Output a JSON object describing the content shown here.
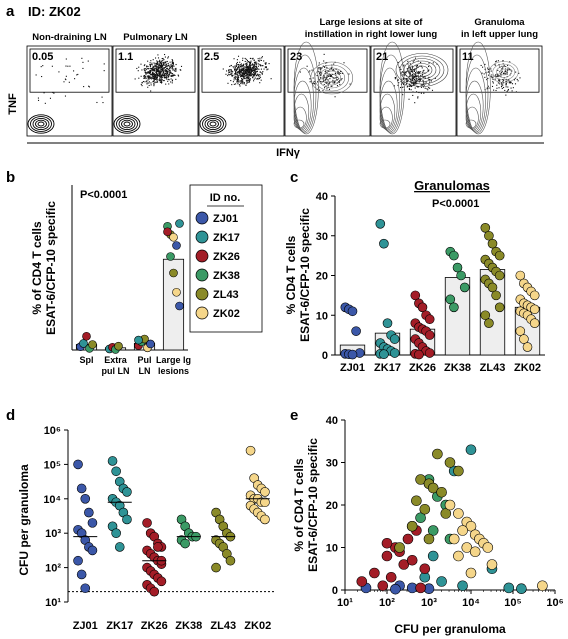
{
  "panel_a": {
    "letter": "a",
    "id_label": "ID: ZK02",
    "y_label": "TNF",
    "x_label": "IFNγ",
    "plots": [
      {
        "title": "Non-draining LN",
        "value": "0.05",
        "kind": "sparse"
      },
      {
        "title": "Pulmonary LN",
        "value": "1.1",
        "kind": "dense"
      },
      {
        "title": "Spleen",
        "value": "2.5",
        "kind": "dense"
      },
      {
        "title": "Large lesions at site of instillation in right lower lung",
        "value": "23",
        "kind": "contour"
      },
      {
        "title": "",
        "value": "21",
        "kind": "contour-dense"
      },
      {
        "title": "Granuloma in left upper lung",
        "value": "11",
        "kind": "contour-light"
      }
    ]
  },
  "legend": {
    "title": "ID no.",
    "items": [
      {
        "id": "ZJ01",
        "color": "#3b57a8"
      },
      {
        "id": "ZK17",
        "color": "#2f9396"
      },
      {
        "id": "ZK26",
        "color": "#a31d27"
      },
      {
        "id": "ZK38",
        "color": "#3b9a65"
      },
      {
        "id": "ZL43",
        "color": "#8a8a28"
      },
      {
        "id": "ZK02",
        "color": "#f5d68a"
      }
    ]
  },
  "chart_data": [
    {
      "panel": "b",
      "type": "bar",
      "ylabel": "% of CD4 T cells\nESAT-6/CFP-10 specific",
      "annotation": "P<0.0001",
      "categories": [
        "Spl",
        "Extra pul LN",
        "Pul LN",
        "Large lg lesions"
      ],
      "ylim": [
        0,
        30
      ],
      "bar_values": [
        1.0,
        0.4,
        1.2,
        16.5
      ],
      "points": [
        [
          0.6,
          1.2,
          2.5,
          0.3,
          1.0
        ],
        [
          0.2,
          0.5,
          0.1,
          0.7
        ],
        [
          0.8,
          1.5,
          2.0,
          0.4,
          1.1,
          1.8
        ],
        [
          22.5,
          21.0,
          20.5,
          19.0,
          23.0,
          21.5,
          17.0,
          14.0,
          10.5,
          8.0
        ]
      ]
    },
    {
      "panel": "c",
      "type": "bar",
      "title": "Granulomas",
      "annotation": "P<0.0001",
      "ylabel": "% CD4 T cells\nESAT-6/CFP-10 specific",
      "categories": [
        "ZJ01",
        "ZK17",
        "ZK26",
        "ZK38",
        "ZL43",
        "ZK02"
      ],
      "ylim": [
        0,
        40
      ],
      "yticks": [
        0,
        10,
        20,
        30,
        40
      ],
      "bar_values": [
        2.5,
        5.5,
        6.5,
        19.5,
        21.5,
        12.0
      ],
      "points": [
        [
          12,
          11.5,
          11,
          6,
          0.5,
          0.3,
          0.2,
          0.1
        ],
        [
          33,
          28,
          8,
          5,
          4,
          3,
          2,
          1.5,
          1,
          0.5,
          0.3,
          0.2
        ],
        [
          15,
          13,
          12,
          10,
          9,
          8,
          7,
          6.5,
          6,
          5,
          4,
          3,
          2,
          1,
          0.5,
          0.3,
          0.1
        ],
        [
          26,
          25,
          22,
          20,
          17,
          14,
          12
        ],
        [
          32,
          30,
          28,
          26,
          25,
          24,
          23,
          22,
          21,
          20,
          19,
          18,
          17,
          15,
          12,
          10,
          8
        ],
        [
          20,
          18,
          17,
          16,
          15,
          14,
          13,
          12.5,
          12,
          11.5,
          11,
          10.5,
          10,
          9,
          8,
          6,
          4,
          2
        ]
      ]
    },
    {
      "panel": "d",
      "type": "scatter",
      "ylabel": "CFU per granuloma",
      "ylim_log10": [
        1,
        6
      ],
      "yticks": [
        "10¹",
        "10²",
        "10³",
        "10⁴",
        "10⁵",
        "10⁶"
      ],
      "categories": [
        "ZJ01",
        "ZK17",
        "ZK26",
        "ZK38",
        "ZL43",
        "ZK02"
      ],
      "median_log10": [
        2.9,
        3.9,
        2.2,
        2.9,
        2.9,
        4.0
      ],
      "detection_limit_log10": 1.3,
      "points_log10": [
        [
          5.0,
          4.3,
          4.0,
          3.6,
          3.3,
          3.1,
          3.0,
          2.8,
          2.6,
          2.5,
          2.2,
          1.8,
          1.4
        ],
        [
          5.1,
          4.8,
          4.5,
          4.3,
          4.2,
          4.0,
          3.9,
          3.8,
          3.6,
          3.4,
          3.2,
          3.0,
          2.6
        ],
        [
          3.3,
          3.0,
          2.9,
          2.7,
          2.6,
          2.5,
          2.4,
          2.3,
          2.2,
          2.1,
          2.0,
          1.9,
          1.8,
          1.7,
          1.6,
          1.5,
          1.4,
          1.3,
          2.6,
          2.2
        ],
        [
          3.4,
          3.2,
          3.0,
          2.9,
          2.9,
          2.8,
          2.7
        ],
        [
          3.6,
          3.4,
          3.2,
          3.0,
          2.9,
          2.8,
          2.7,
          2.6,
          2.4,
          2.2,
          2.0
        ],
        [
          5.4,
          4.6,
          4.4,
          4.3,
          4.2,
          4.1,
          4.0,
          4.0,
          3.9,
          3.9,
          3.8,
          3.7,
          3.6,
          3.5,
          3.4
        ]
      ]
    },
    {
      "panel": "e",
      "type": "scatter",
      "ylabel": "% of CD4 T cells\nESAT-6/CFP-10 specific",
      "xlabel": "CFU per granuloma",
      "xlim_log10": [
        1,
        6
      ],
      "xticks": [
        "10¹",
        "10²",
        "10³",
        "10⁴",
        "10⁵",
        "10⁶"
      ],
      "ylim": [
        0,
        40
      ],
      "yticks": [
        0,
        10,
        20,
        30,
        40
      ],
      "series": [
        {
          "name": "ZJ01",
          "points": [
            [
              2.3,
              1
            ],
            [
              2.6,
              0.5
            ],
            [
              2.2,
              0.2
            ],
            [
              3.0,
              0.3
            ],
            [
              1.5,
              0.5
            ]
          ]
        },
        {
          "name": "ZK17",
          "points": [
            [
              4.0,
              33
            ],
            [
              3.6,
              28
            ],
            [
              3.1,
              8
            ],
            [
              4.5,
              5
            ],
            [
              2.9,
              3
            ],
            [
              3.3,
              2
            ],
            [
              3.8,
              1
            ],
            [
              4.9,
              0.5
            ],
            [
              5.2,
              0.3
            ]
          ]
        },
        {
          "name": "ZK26",
          "points": [
            [
              1.4,
              2
            ],
            [
              1.7,
              4
            ],
            [
              2.0,
              8
            ],
            [
              2.2,
              10
            ],
            [
              2.3,
              9
            ],
            [
              2.5,
              12
            ],
            [
              2.7,
              14
            ],
            [
              2.4,
              6
            ],
            [
              2.6,
              7
            ],
            [
              2.1,
              3
            ],
            [
              2.8,
              0.5
            ],
            [
              1.9,
              1
            ],
            [
              2.0,
              11
            ],
            [
              2.6,
              15
            ],
            [
              2.9,
              5
            ]
          ]
        },
        {
          "name": "ZK38",
          "points": [
            [
              3.0,
              25
            ],
            [
              3.2,
              22
            ],
            [
              3.4,
              20
            ],
            [
              2.8,
              17
            ],
            [
              3.1,
              14
            ],
            [
              3.5,
              12
            ],
            [
              3.0,
              26
            ]
          ]
        },
        {
          "name": "ZL43",
          "points": [
            [
              3.2,
              32
            ],
            [
              3.5,
              30
            ],
            [
              3.7,
              28
            ],
            [
              2.8,
              26
            ],
            [
              3.0,
              25
            ],
            [
              3.1,
              24
            ],
            [
              3.3,
              23
            ],
            [
              2.7,
              21
            ],
            [
              2.9,
              19
            ],
            [
              3.4,
              18
            ],
            [
              2.6,
              15
            ],
            [
              3.0,
              12
            ],
            [
              2.3,
              10
            ]
          ]
        },
        {
          "name": "ZK02",
          "points": [
            [
              3.5,
              20
            ],
            [
              3.7,
              18
            ],
            [
              3.9,
              16
            ],
            [
              4.0,
              15
            ],
            [
              3.8,
              14
            ],
            [
              4.1,
              13
            ],
            [
              4.2,
              12
            ],
            [
              3.6,
              12
            ],
            [
              4.3,
              11
            ],
            [
              3.9,
              10
            ],
            [
              4.4,
              10
            ],
            [
              4.1,
              9
            ],
            [
              3.7,
              8
            ],
            [
              4.5,
              6
            ],
            [
              4.0,
              4
            ],
            [
              5.7,
              1
            ]
          ]
        }
      ]
    }
  ]
}
